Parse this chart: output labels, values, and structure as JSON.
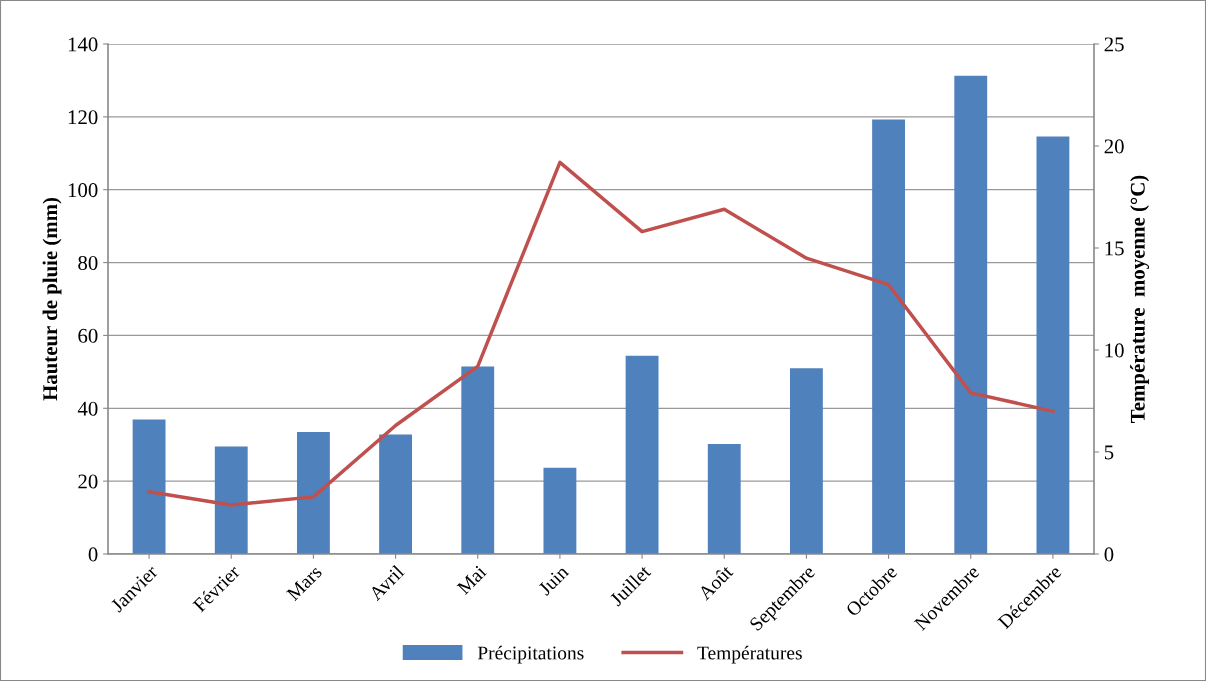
{
  "chart_data": {
    "type": "bar",
    "categories": [
      "Janvier",
      "Février",
      "Mars",
      "Avril",
      "Mai",
      "Juin",
      "Juillet",
      "Août",
      "Septembre",
      "Octobre",
      "Novembre",
      "Décembre"
    ],
    "series": [
      {
        "name": "Précipitations",
        "color": "#4f81bd",
        "values": [
          36.9,
          29.5,
          33.5,
          32.8,
          51.5,
          23.7,
          54.4,
          30.2,
          51.0,
          119.3,
          131.3,
          114.6
        ]
      },
      {
        "name": "Températures",
        "type": "line",
        "axis": "y2",
        "color": "#c0504d",
        "values": [
          3.05,
          2.4,
          2.8,
          6.3,
          9.2,
          19.2,
          15.8,
          16.9,
          14.5,
          13.2,
          7.9,
          7.0
        ]
      }
    ],
    "ylabel": "Hauteur de pluie (mm)",
    "y2label": "Température  moyenne (°C)",
    "ylim": [
      0,
      140
    ],
    "yticks": [
      0,
      20,
      40,
      60,
      80,
      100,
      120,
      140
    ],
    "y2lim": [
      0,
      25
    ],
    "y2ticks": [
      0,
      5,
      10,
      15,
      20,
      25
    ],
    "grid": "y",
    "legend": "bottom",
    "marker": "none",
    "line_style": "solid"
  }
}
